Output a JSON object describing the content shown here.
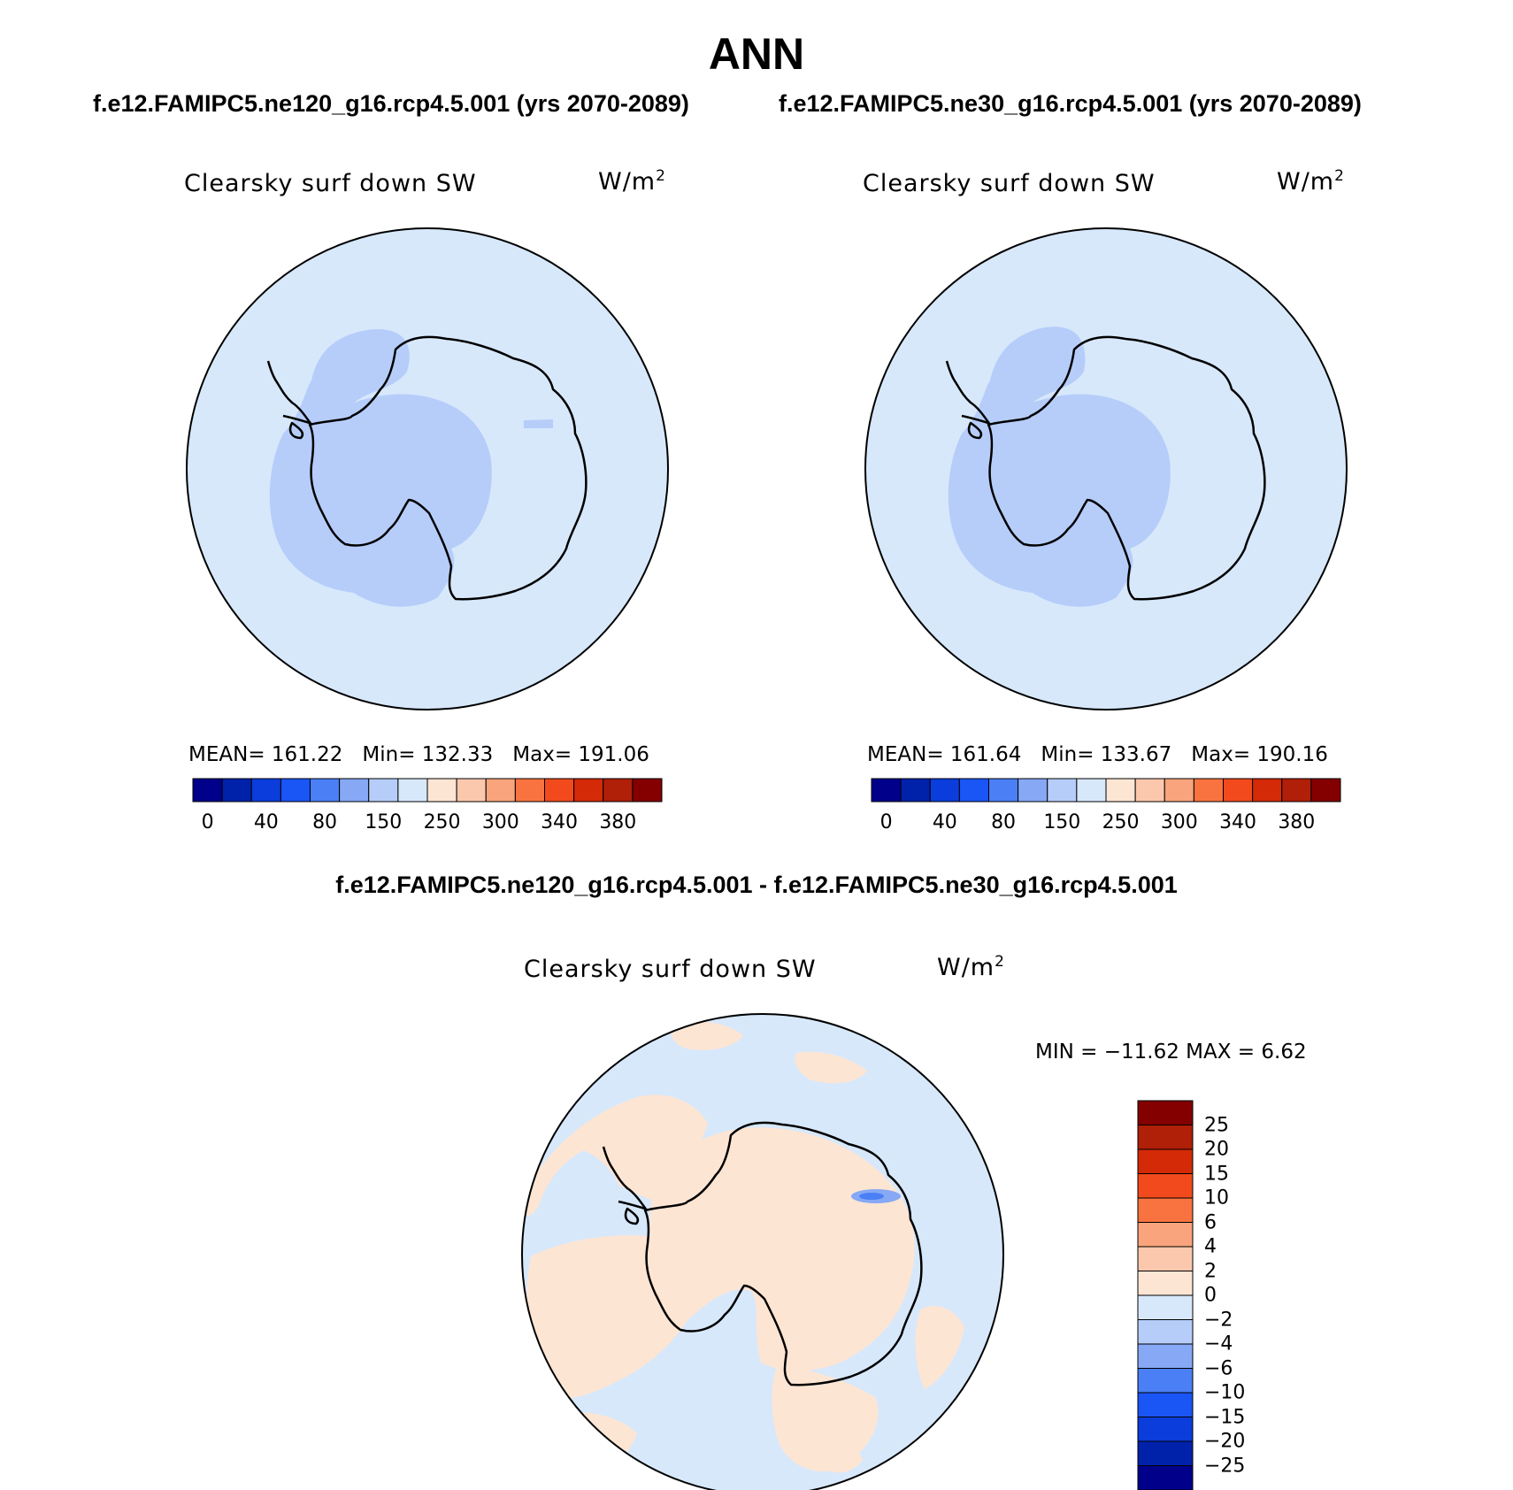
{
  "figure": {
    "season": "ANN",
    "case1_title": "f.e12.FAMIPC5.ne120_g16.rcp4.5.001 (yrs 2070-2089)",
    "case2_title": "f.e12.FAMIPC5.ne30_g16.rcp4.5.001 (yrs 2070-2089)",
    "diff_title": "f.e12.FAMIPC5.ne120_g16.rcp4.5.001 - f.e12.FAMIPC5.ne30_g16.rcp4.5.001"
  },
  "panels": [
    {
      "variable": "Clearsky surf down SW",
      "units_base": "W/m",
      "units_exp": "2",
      "mean_text": "MEAN= 161.22",
      "min_text": "Min= 132.33",
      "max_text": "Max= 191.06"
    },
    {
      "variable": "Clearsky surf down SW",
      "units_base": "W/m",
      "units_exp": "2",
      "mean_text": "MEAN= 161.64",
      "min_text": "Min= 133.67",
      "max_text": "Max= 190.16"
    }
  ],
  "diff_panel": {
    "variable": "Clearsky surf down SW",
    "units_base": "W/m",
    "units_exp": "2",
    "minmax_text": "MIN = −11.62 MAX =    6.62"
  },
  "colorbar_abs": {
    "colors": [
      "#00008b",
      "#0022aa",
      "#0a3ddb",
      "#1a55f5",
      "#4a7ff5",
      "#86a8f5",
      "#b6cdfa",
      "#d7e8fb",
      "#fde5d4",
      "#fbc8ad",
      "#f9a47c",
      "#f97340",
      "#f24a1c",
      "#d42a08",
      "#b01f08",
      "#840000"
    ],
    "ticks": [
      "0",
      "40",
      "80",
      "150",
      "250",
      "300",
      "340",
      "380"
    ],
    "tick_after_box": [
      1,
      3,
      5,
      7,
      9,
      11,
      13,
      15
    ]
  },
  "colorbar_diff": {
    "colors_top_to_bottom": [
      "#840000",
      "#b01f08",
      "#d42a08",
      "#f24a1c",
      "#f97340",
      "#f9a47c",
      "#fbc8ad",
      "#fde5d4",
      "#d7e8fb",
      "#b6cdfa",
      "#86a8f5",
      "#4a7ff5",
      "#1a55f5",
      "#0a3ddb",
      "#0022aa",
      "#00008b"
    ],
    "ticks_top_to_bottom": [
      "25",
      "20",
      "15",
      "10",
      "6",
      "4",
      "2",
      "0",
      "−2",
      "−4",
      "−6",
      "−10",
      "−15",
      "−20",
      "−25"
    ]
  },
  "map_colors": {
    "ocean_abs": "#d7e8fb",
    "interior_abs": "#b6cdfa",
    "diff_ocean": "#d7e8fb",
    "diff_positive": "#fde5d4",
    "diff_strong_negative": "#4a7ff5",
    "coast": "#000000"
  }
}
